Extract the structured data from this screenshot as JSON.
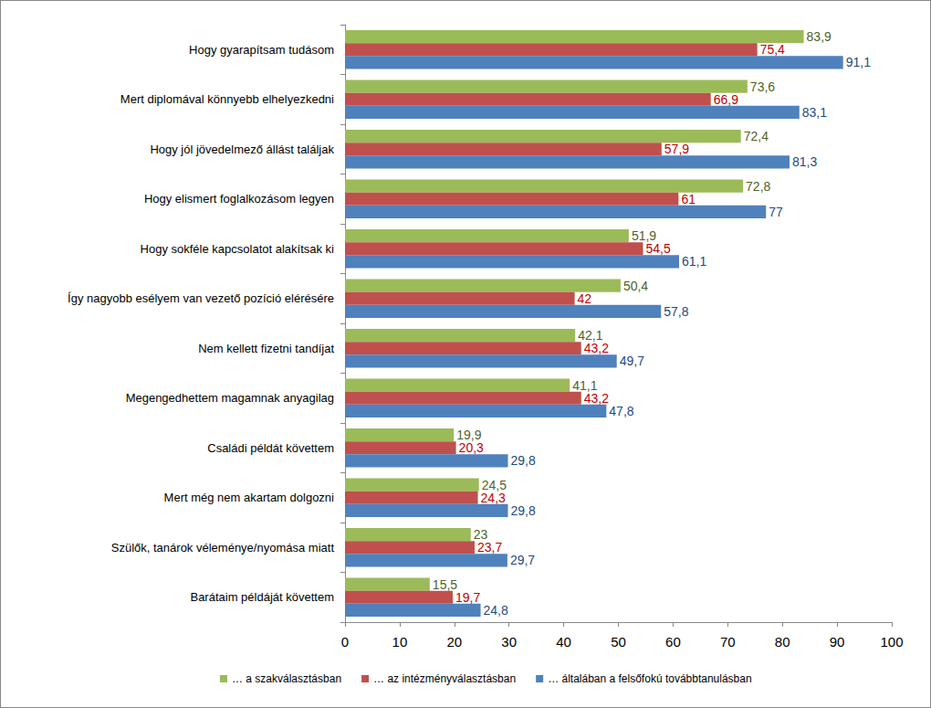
{
  "chart_data": {
    "type": "bar",
    "orientation": "horizontal",
    "categories": [
      "Hogy gyarapítsam tudásom",
      "Mert diplomával könnyebb elhelyezkedni",
      "Hogy jól jövedelmező állást találjak",
      "Hogy elismert foglalkozásom legyen",
      "Hogy sokféle kapcsolatot alakítsak ki",
      "Így nagyobb esélyem van vezető pozíció elérésére",
      "Nem kellett fizetni tandíjat",
      "Megengedhettem magamnak anyagilag",
      "Családi példát követtem",
      "Mert még nem akartam dolgozni",
      "Szülők, tanárok véleménye/nyomása miatt",
      "Barátaim példáját követtem"
    ],
    "series": [
      {
        "name": "… a szakválasztásban",
        "color": "#9BBB59",
        "values": [
          83.9,
          73.6,
          72.4,
          72.8,
          51.9,
          50.4,
          42.1,
          41.1,
          19.9,
          24.5,
          23,
          15.5
        ],
        "value_labels": [
          "83,9",
          "73,6",
          "72,4",
          "72,8",
          "51,9",
          "50,4",
          "42,1",
          "41,1",
          "19,9",
          "24,5",
          "23",
          "15,5"
        ]
      },
      {
        "name": "… az intézményválasztásban",
        "color": "#C0504D",
        "values": [
          75.4,
          66.9,
          57.9,
          61,
          54.5,
          42,
          43.2,
          43.2,
          20.3,
          24.3,
          23.7,
          19.7
        ],
        "value_labels": [
          "75,4",
          "66,9",
          "57,9",
          "61",
          "54,5",
          "42",
          "43,2",
          "43,2",
          "20,3",
          "24,3",
          "23,7",
          "19,7"
        ]
      },
      {
        "name": "… általában a felsőfokú továbbtanulásban",
        "color": "#4F81BD",
        "values": [
          91.1,
          83.1,
          81.3,
          77,
          61.1,
          57.8,
          49.7,
          47.8,
          29.8,
          29.8,
          29.7,
          24.8
        ],
        "value_labels": [
          "91,1",
          "83,1",
          "81,3",
          "77",
          "61,1",
          "57,8",
          "49,7",
          "47,8",
          "29,8",
          "29,8",
          "29,7",
          "24,8"
        ]
      }
    ],
    "xlim": [
      0,
      100
    ],
    "xticks": [
      0,
      10,
      20,
      30,
      40,
      50,
      60,
      70,
      80,
      90,
      100
    ],
    "grid": false,
    "legend": "bottom",
    "data_labels": true
  }
}
